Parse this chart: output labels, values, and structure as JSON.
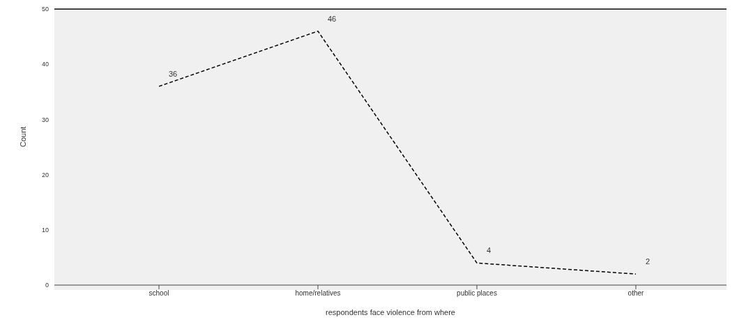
{
  "chart_data": {
    "type": "line",
    "xlabel": "respondents face violence from where",
    "ylabel": "Count",
    "categories": [
      "school",
      "home/relatives",
      "public places",
      "other"
    ],
    "values": [
      36,
      46,
      4,
      2
    ],
    "color": "#000000",
    "line_style": "dashed",
    "marker": "none",
    "data_labels": true,
    "ylim": [
      0,
      50
    ],
    "yticks": [
      0,
      10,
      20,
      30,
      40,
      50
    ]
  }
}
